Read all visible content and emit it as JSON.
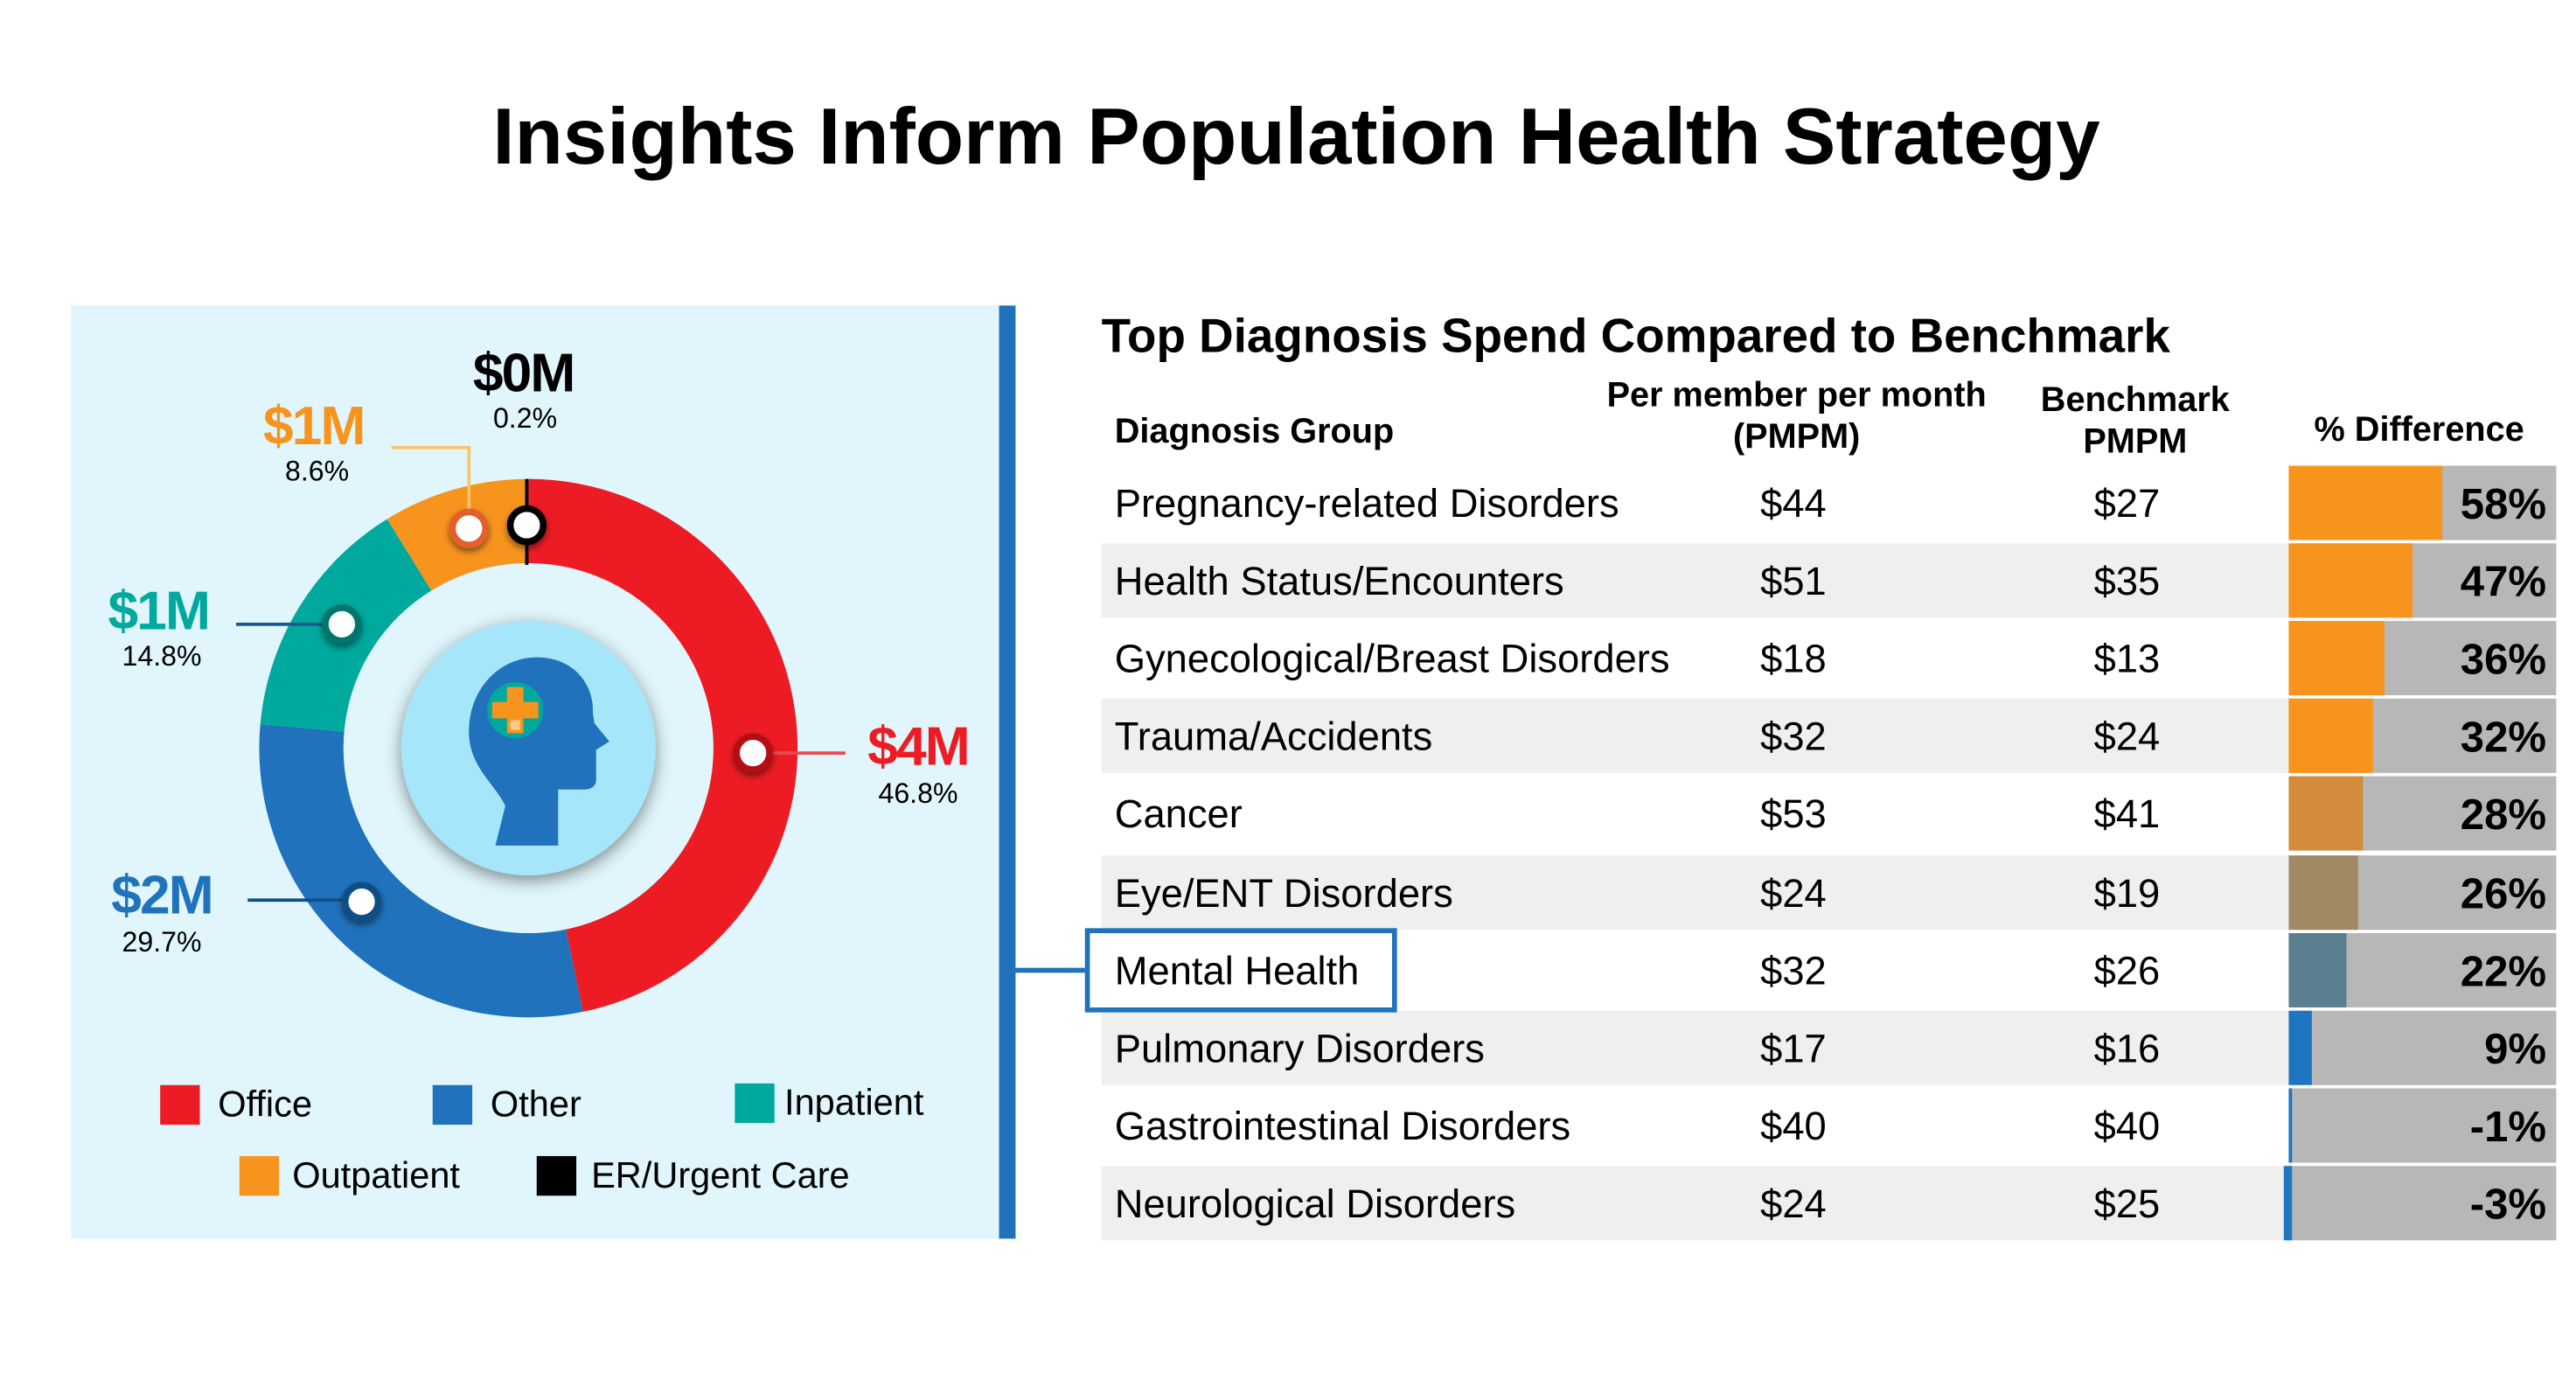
{
  "title": "Insights Inform Population Health Strategy",
  "colors": {
    "office": "#ed1c24",
    "other": "#1f72bb",
    "inpatient": "#00a99d",
    "outpatient": "#f7941e",
    "er": "#000000",
    "panel_bg": "#e0f6fc",
    "accent": "#1f72bb"
  },
  "center_icon": "head-with-medical-cross-icon",
  "chart_data": [
    {
      "type": "pie",
      "variant": "donut",
      "slices": [
        {
          "name": "Office",
          "amount": "$4M",
          "percent": 46.8,
          "percent_label": "46.8%",
          "color": "#ed1c24"
        },
        {
          "name": "Other",
          "amount": "$2M",
          "percent": 29.7,
          "percent_label": "29.7%",
          "color": "#1f72bb"
        },
        {
          "name": "Inpatient",
          "amount": "$1M",
          "percent": 14.8,
          "percent_label": "14.8%",
          "color": "#00a99d"
        },
        {
          "name": "Outpatient",
          "amount": "$1M",
          "percent": 8.6,
          "percent_label": "8.6%",
          "color": "#f7941e"
        },
        {
          "name": "ER/Urgent Care",
          "amount": "$0M",
          "percent": 0.2,
          "percent_label": "0.2%",
          "color": "#000000"
        }
      ],
      "legend_placement": "bottom"
    },
    {
      "type": "table",
      "title": "Top Diagnosis Spend Compared to Benchmark",
      "headers": [
        "Diagnosis Group",
        "Per member per month (PMPM)",
        "Benchmark PMPM",
        "% Difference"
      ],
      "rows": [
        {
          "group": "Pregnancy-related Disorders",
          "pmpm": "$44",
          "benchmark": "$27",
          "diff": 58,
          "diff_label": "58%",
          "color": "#f7941e"
        },
        {
          "group": "Health Status/Encounters",
          "pmpm": "$51",
          "benchmark": "$35",
          "diff": 47,
          "diff_label": "47%",
          "color": "#f7941e"
        },
        {
          "group": "Gynecological/Breast Disorders",
          "pmpm": "$18",
          "benchmark": "$13",
          "diff": 36,
          "diff_label": "36%",
          "color": "#f7941e"
        },
        {
          "group": "Trauma/Accidents",
          "pmpm": "$32",
          "benchmark": "$24",
          "diff": 32,
          "diff_label": "32%",
          "color": "#f7941e"
        },
        {
          "group": "Cancer",
          "pmpm": "$53",
          "benchmark": "$41",
          "diff": 28,
          "diff_label": "28%",
          "color": "#d48c3c"
        },
        {
          "group": "Eye/ENT Disorders",
          "pmpm": "$24",
          "benchmark": "$19",
          "diff": 26,
          "diff_label": "26%",
          "color": "#9f8a64"
        },
        {
          "group": "Mental Health",
          "pmpm": "$32",
          "benchmark": "$26",
          "diff": 22,
          "diff_label": "22%",
          "color": "#5a7f90",
          "highlighted": true
        },
        {
          "group": "Pulmonary Disorders",
          "pmpm": "$17",
          "benchmark": "$16",
          "diff": 9,
          "diff_label": "9%",
          "color": "#1f75bf"
        },
        {
          "group": "Gastrointestinal Disorders",
          "pmpm": "$40",
          "benchmark": "$40",
          "diff": -1,
          "diff_label": "-1%",
          "color": "#1f75bf"
        },
        {
          "group": "Neurological Disorders",
          "pmpm": "$24",
          "benchmark": "$25",
          "diff": -3,
          "diff_label": "-3%",
          "color": "#1f75bf"
        }
      ]
    }
  ],
  "table_headers": {
    "group": "Diagnosis Group",
    "pmpm_line1": "Per member per month",
    "pmpm_line2": "(PMPM)",
    "bench_line1": "Benchmark",
    "bench_line2": "PMPM",
    "diff": "% Difference"
  }
}
